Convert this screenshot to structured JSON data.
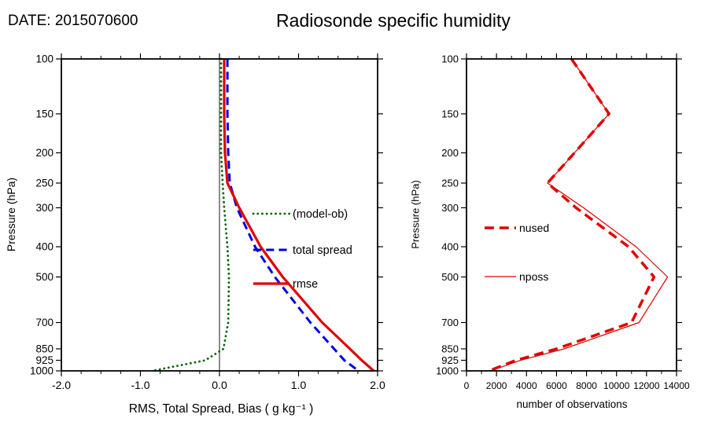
{
  "header": {
    "date": "DATE: 2015070600",
    "title": "Radiosonde specific humidity"
  },
  "colors": {
    "bias_green": "#006400",
    "spread_blue": "#0000dd",
    "rmse_red": "#e00000",
    "axis_black": "#000000"
  },
  "chart_data": [
    {
      "id": "left",
      "type": "line",
      "xlabel": "RMS, Total Spread, Bias ( g kg⁻¹ )",
      "ylabel": "Pressure (hPa)",
      "xlim": [
        -2.0,
        2.0
      ],
      "xtick_values": [
        -2.0,
        -1.0,
        0.0,
        1.0,
        2.0
      ],
      "xtick_labels": [
        "-2.0",
        "-1.0",
        "0.0",
        "1.0",
        "2.0"
      ],
      "yscale": "log",
      "ylim": [
        100,
        1000
      ],
      "ytick_values": [
        100,
        150,
        200,
        250,
        300,
        400,
        500,
        700,
        850,
        925,
        1000
      ],
      "ytick_labels": [
        "100",
        "150",
        "200",
        "250",
        "300",
        "400",
        "500",
        "700",
        "850",
        "925",
        "1000"
      ],
      "zero_line": true,
      "grid": false,
      "legend_position": "inside-middle-right",
      "levels": [
        100,
        150,
        200,
        250,
        300,
        400,
        500,
        700,
        850,
        925,
        1000
      ],
      "series": [
        {
          "name": "(model-ob)",
          "color": "#006400",
          "style": "dotted",
          "width": 2.8,
          "values": [
            0.02,
            0.02,
            0.02,
            0.04,
            0.06,
            0.1,
            0.12,
            0.11,
            0.05,
            -0.18,
            -0.85
          ]
        },
        {
          "name": "total spread",
          "color": "#0000dd",
          "style": "dashed",
          "width": 3.0,
          "values": [
            0.1,
            0.1,
            0.11,
            0.13,
            0.22,
            0.45,
            0.7,
            1.15,
            1.45,
            1.58,
            1.76
          ]
        },
        {
          "name": "rmse",
          "color": "#e00000",
          "style": "solid",
          "width": 3.2,
          "values": [
            0.06,
            0.06,
            0.07,
            0.1,
            0.25,
            0.52,
            0.8,
            1.3,
            1.65,
            1.8,
            1.95
          ]
        }
      ]
    },
    {
      "id": "right",
      "type": "line",
      "xlabel": "number of observations",
      "ylabel": "Pressure (hPa)",
      "xlim": [
        0,
        14000
      ],
      "xtick_values": [
        0,
        2000,
        4000,
        6000,
        8000,
        10000,
        12000,
        14000
      ],
      "xtick_labels": [
        "0",
        "2000",
        "4000",
        "6000",
        "8000",
        "10000",
        "12000",
        "14000"
      ],
      "yscale": "log",
      "ylim": [
        100,
        1000
      ],
      "ytick_values": [
        100,
        150,
        200,
        250,
        300,
        400,
        500,
        700,
        850,
        925,
        1000
      ],
      "ytick_labels": [
        "100",
        "150",
        "200",
        "250",
        "300",
        "400",
        "500",
        "700",
        "850",
        "925",
        "1000"
      ],
      "zero_line": false,
      "grid": false,
      "legend_position": "inside-middle-left",
      "levels": [
        100,
        150,
        200,
        250,
        300,
        400,
        500,
        700,
        850,
        925,
        1000
      ],
      "series": [
        {
          "name": "nused",
          "color": "#e00000",
          "style": "dashed",
          "width": 3.5,
          "values": [
            7000,
            9500,
            7200,
            5400,
            7300,
            10800,
            12500,
            11000,
            6000,
            3300,
            1500
          ]
        },
        {
          "name": "nposs",
          "color": "#e00000",
          "style": "solid",
          "width": 1.2,
          "values": [
            7000,
            9500,
            7200,
            5400,
            7800,
            11300,
            13400,
            11500,
            6500,
            3600,
            1600
          ]
        }
      ]
    }
  ]
}
